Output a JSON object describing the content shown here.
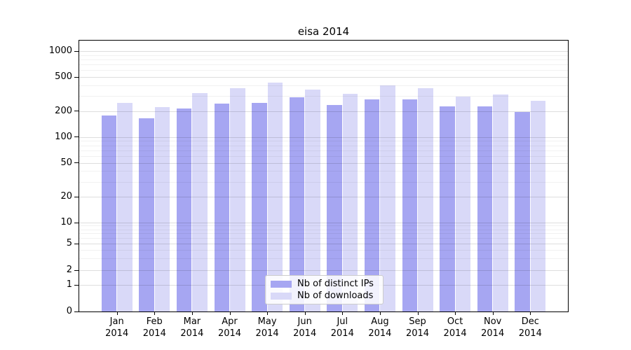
{
  "title": "eisa 2014",
  "legend": {
    "items": [
      {
        "label": "Nb of distinct IPs",
        "color": "#a6a6f2"
      },
      {
        "label": "Nb of downloads",
        "color": "#d9d9f8"
      }
    ]
  },
  "chart_data": {
    "type": "bar",
    "title": "eisa 2014",
    "categories": [
      "Jan 2014",
      "Feb 2014",
      "Mar 2014",
      "Apr 2014",
      "May 2014",
      "Jun 2014",
      "Jul 2014",
      "Aug 2014",
      "Sep 2014",
      "Oct 2014",
      "Nov 2014",
      "Dec 2014"
    ],
    "series": [
      {
        "name": "Nb of distinct IPs",
        "color": "#a6a6f2",
        "values": [
          177,
          165,
          215,
          247,
          251,
          289,
          236,
          273,
          276,
          229,
          228,
          197
        ]
      },
      {
        "name": "Nb of downloads",
        "color": "#d9d9f8",
        "values": [
          249,
          222,
          327,
          371,
          429,
          359,
          317,
          398,
          369,
          298,
          311,
          262
        ]
      }
    ],
    "xlabel": "",
    "ylabel": "",
    "yscale": "symlog",
    "yticks": [
      0,
      1,
      2,
      5,
      10,
      20,
      50,
      100,
      200,
      500,
      1000
    ],
    "y_minor_ticks": [
      3,
      4,
      6,
      7,
      8,
      9,
      30,
      40,
      60,
      70,
      80,
      90,
      300,
      400,
      600,
      700,
      800,
      900
    ],
    "ylim": [
      0,
      1350
    ],
    "grid": true,
    "legend_position": "lower center"
  }
}
